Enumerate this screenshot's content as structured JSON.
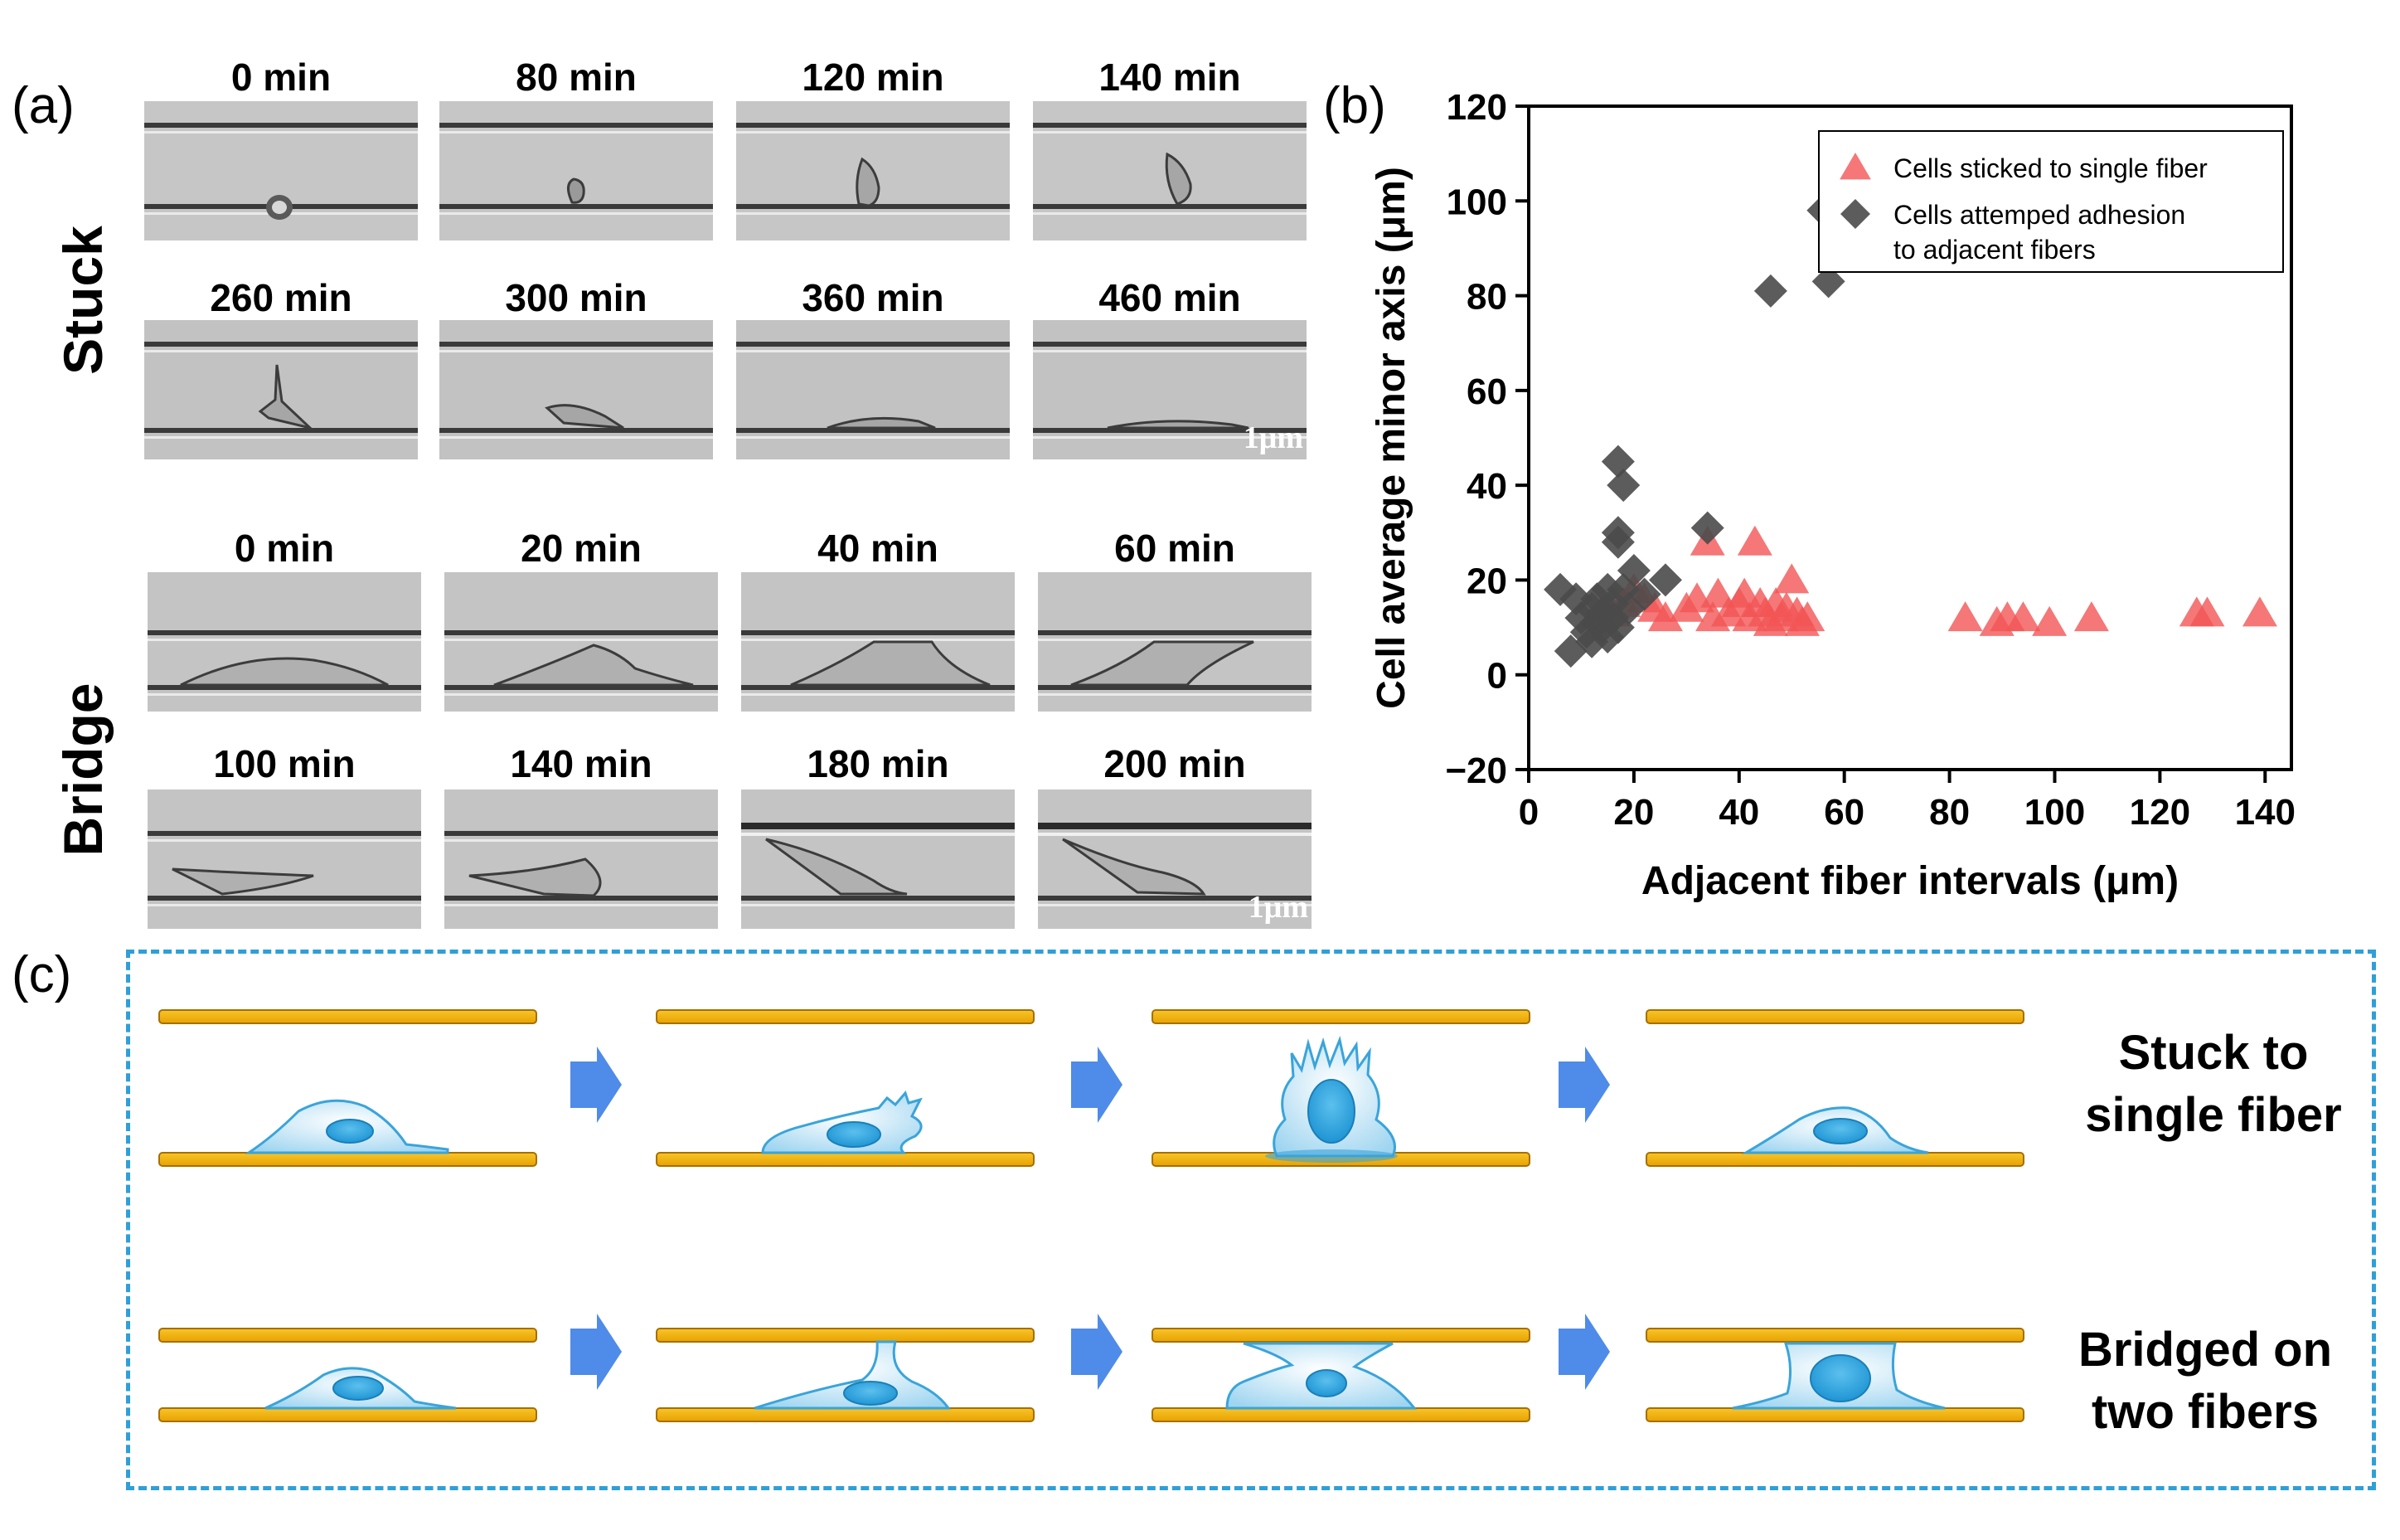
{
  "figure": {
    "panel_a": {
      "letter": "(a)",
      "stuck": {
        "label": "Stuck",
        "times_row1": [
          "0 min",
          "80 min",
          "120 min",
          "140 min"
        ],
        "times_row2": [
          "260 min",
          "300 min",
          "360 min",
          "460 min"
        ],
        "scale_bar": "1μm"
      },
      "bridge": {
        "label": "Bridge",
        "times_row1": [
          "0 min",
          "20 min",
          "40 min",
          "60 min"
        ],
        "times_row2": [
          "100 min",
          "140 min",
          "180 min",
          "200 min"
        ],
        "scale_bar": "1μm"
      }
    },
    "panel_b": {
      "letter": "(b)"
    },
    "panel_c": {
      "letter": "(c)",
      "row1_caption_line1": "Stuck to",
      "row1_caption_line2": "single fiber",
      "row2_caption_line1": "Bridged on",
      "row2_caption_line2": "two fibers"
    },
    "colors": {
      "fiber": "#f5b400",
      "cell": "#9fd5f0",
      "nucleus": "#2ea3dc",
      "arrow": "#4f8be8",
      "red": "#f25555",
      "gray": "#4a4a4a",
      "dash": "#2f9fd8"
    }
  },
  "chart_data": {
    "type": "scatter",
    "title": "",
    "xlabel": "Adjacent fiber intervals (μm)",
    "ylabel": "Cell average minor axis (μm)",
    "xlim": [
      0,
      145
    ],
    "ylim": [
      -20,
      120
    ],
    "xticks": [
      "0",
      "20",
      "40",
      "60",
      "80",
      "100",
      "120",
      "140"
    ],
    "yticks": [
      "−20",
      "0",
      "20",
      "40",
      "60",
      "80",
      "100",
      "120"
    ],
    "legend_position": "top-right",
    "series": [
      {
        "name": "Cells sticked to single fiber",
        "marker": "triangle",
        "color": "#f25555",
        "points": [
          [
            16,
            13
          ],
          [
            18,
            15
          ],
          [
            20,
            18
          ],
          [
            22,
            16
          ],
          [
            24,
            14
          ],
          [
            26,
            12
          ],
          [
            30,
            14
          ],
          [
            32,
            16
          ],
          [
            34,
            28
          ],
          [
            35,
            12
          ],
          [
            36,
            17
          ],
          [
            38,
            13
          ],
          [
            40,
            15
          ],
          [
            41,
            17
          ],
          [
            42,
            12
          ],
          [
            43,
            28
          ],
          [
            44,
            15
          ],
          [
            45,
            13
          ],
          [
            46,
            11
          ],
          [
            47,
            15
          ],
          [
            48,
            12
          ],
          [
            49,
            14
          ],
          [
            50,
            20
          ],
          [
            51,
            13
          ],
          [
            52,
            11
          ],
          [
            53,
            12
          ],
          [
            83,
            12
          ],
          [
            89,
            11
          ],
          [
            91,
            12
          ],
          [
            94,
            12
          ],
          [
            99,
            11
          ],
          [
            107,
            12
          ],
          [
            127,
            13
          ],
          [
            129,
            13
          ],
          [
            139,
            13
          ]
        ]
      },
      {
        "name": "Cells attemped adhesion to adjacent fibers",
        "marker": "diamond",
        "color": "#4a4a4a",
        "points": [
          [
            6,
            18
          ],
          [
            8,
            5
          ],
          [
            9,
            16
          ],
          [
            10,
            12
          ],
          [
            11,
            9
          ],
          [
            12,
            14
          ],
          [
            12,
            7
          ],
          [
            13,
            11
          ],
          [
            13,
            16
          ],
          [
            14,
            10
          ],
          [
            14,
            13
          ],
          [
            15,
            8
          ],
          [
            15,
            18
          ],
          [
            16,
            12
          ],
          [
            16,
            15
          ],
          [
            17,
            45
          ],
          [
            17,
            30
          ],
          [
            17,
            28
          ],
          [
            17,
            10
          ],
          [
            18,
            40
          ],
          [
            18,
            18
          ],
          [
            19,
            14
          ],
          [
            20,
            22
          ],
          [
            22,
            17
          ],
          [
            26,
            20
          ],
          [
            34,
            31
          ],
          [
            46,
            81
          ],
          [
            56,
            98
          ],
          [
            57,
            83
          ]
        ]
      }
    ]
  }
}
